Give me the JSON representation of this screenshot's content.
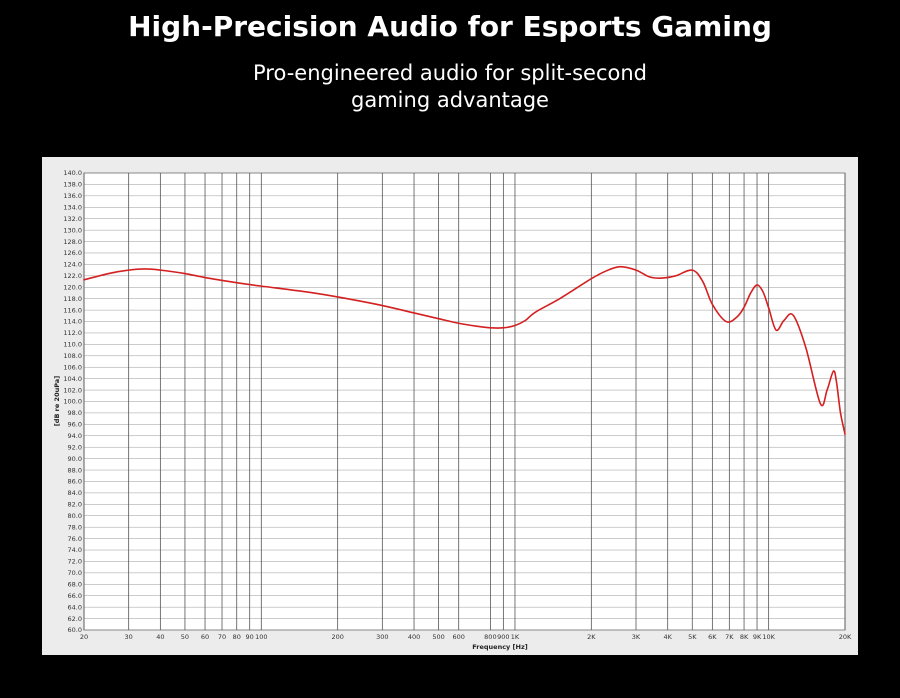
{
  "header": {
    "title": "High-Precision Audio for Esports Gaming",
    "subtitle_line1": "Pro-engineered audio for split-second",
    "subtitle_line2": "gaming advantage"
  },
  "colors": {
    "background": "#000000",
    "panel": "#ececec",
    "plot": "#ffffff",
    "grid": "#555555",
    "curve": "#d42020"
  },
  "chart_data": {
    "type": "line",
    "title": "",
    "xlabel": "Frequency  [Hz]",
    "ylabel": "[dB re 20uPa]",
    "x_scale": "log",
    "xlim": [
      20,
      20000
    ],
    "ylim": [
      60,
      140
    ],
    "grid": true,
    "legend": "none",
    "x_ticks": [
      {
        "value": 20,
        "label": "20"
      },
      {
        "value": 30,
        "label": "30"
      },
      {
        "value": 40,
        "label": "40"
      },
      {
        "value": 50,
        "label": "50"
      },
      {
        "value": 60,
        "label": "60"
      },
      {
        "value": 70,
        "label": "70"
      },
      {
        "value": 80,
        "label": "80"
      },
      {
        "value": 90,
        "label": "90"
      },
      {
        "value": 100,
        "label": "100"
      },
      {
        "value": 200,
        "label": "200"
      },
      {
        "value": 300,
        "label": "300"
      },
      {
        "value": 400,
        "label": "400"
      },
      {
        "value": 500,
        "label": "500"
      },
      {
        "value": 600,
        "label": "600"
      },
      {
        "value": 800,
        "label": "800"
      },
      {
        "value": 900,
        "label": "900"
      },
      {
        "value": 1000,
        "label": "1K"
      },
      {
        "value": 2000,
        "label": "2K"
      },
      {
        "value": 3000,
        "label": "3K"
      },
      {
        "value": 4000,
        "label": "4K"
      },
      {
        "value": 5000,
        "label": "5K"
      },
      {
        "value": 6000,
        "label": "6K"
      },
      {
        "value": 7000,
        "label": "7K"
      },
      {
        "value": 8000,
        "label": "8K"
      },
      {
        "value": 9000,
        "label": "9K"
      },
      {
        "value": 10000,
        "label": "10K"
      },
      {
        "value": 20000,
        "label": "20K"
      }
    ],
    "y_ticks": [
      "60.0",
      "62.0",
      "64.0",
      "66.0",
      "68.0",
      "70.0",
      "72.0",
      "74.0",
      "76.0",
      "78.0",
      "80.0",
      "82.0",
      "84.0",
      "86.0",
      "88.0",
      "90.0",
      "92.0",
      "94.0",
      "96.0",
      "98.0",
      "100.0",
      "102.0",
      "104.0",
      "106.0",
      "108.0",
      "110.0",
      "112.0",
      "114.0",
      "116.0",
      "118.0",
      "120.0",
      "122.0",
      "124.0",
      "126.0",
      "128.0",
      "130.0",
      "132.0",
      "134.0",
      "136.0",
      "138.0",
      "140.0"
    ],
    "series": [
      {
        "color": "#d42020",
        "x": [
          20,
          25,
          30,
          35,
          40,
          50,
          60,
          80,
          100,
          150,
          200,
          300,
          400,
          500,
          600,
          700,
          800,
          900,
          1000,
          1100,
          1200,
          1500,
          2000,
          2300,
          2600,
          3000,
          3400,
          3800,
          4300,
          5000,
          5500,
          6000,
          6800,
          7500,
          8000,
          8500,
          9000,
          9500,
          10000,
          10700,
          11500,
          12500,
          14000,
          16000,
          17000,
          18000,
          18500,
          19200,
          20000
        ],
        "y": [
          121.3,
          122.4,
          123.0,
          123.2,
          123.0,
          122.4,
          121.7,
          120.8,
          120.2,
          119.2,
          118.3,
          116.8,
          115.5,
          114.5,
          113.7,
          113.2,
          112.9,
          112.9,
          113.3,
          114.2,
          115.6,
          118.0,
          121.5,
          122.9,
          123.6,
          123.0,
          121.8,
          121.6,
          122.0,
          123.0,
          121.0,
          117.0,
          114.0,
          114.8,
          116.5,
          119.0,
          120.4,
          119.2,
          116.4,
          112.5,
          114.2,
          115.1,
          109.5,
          99.6,
          102.0,
          105.3,
          103.5,
          98.0,
          94.3
        ]
      }
    ]
  }
}
